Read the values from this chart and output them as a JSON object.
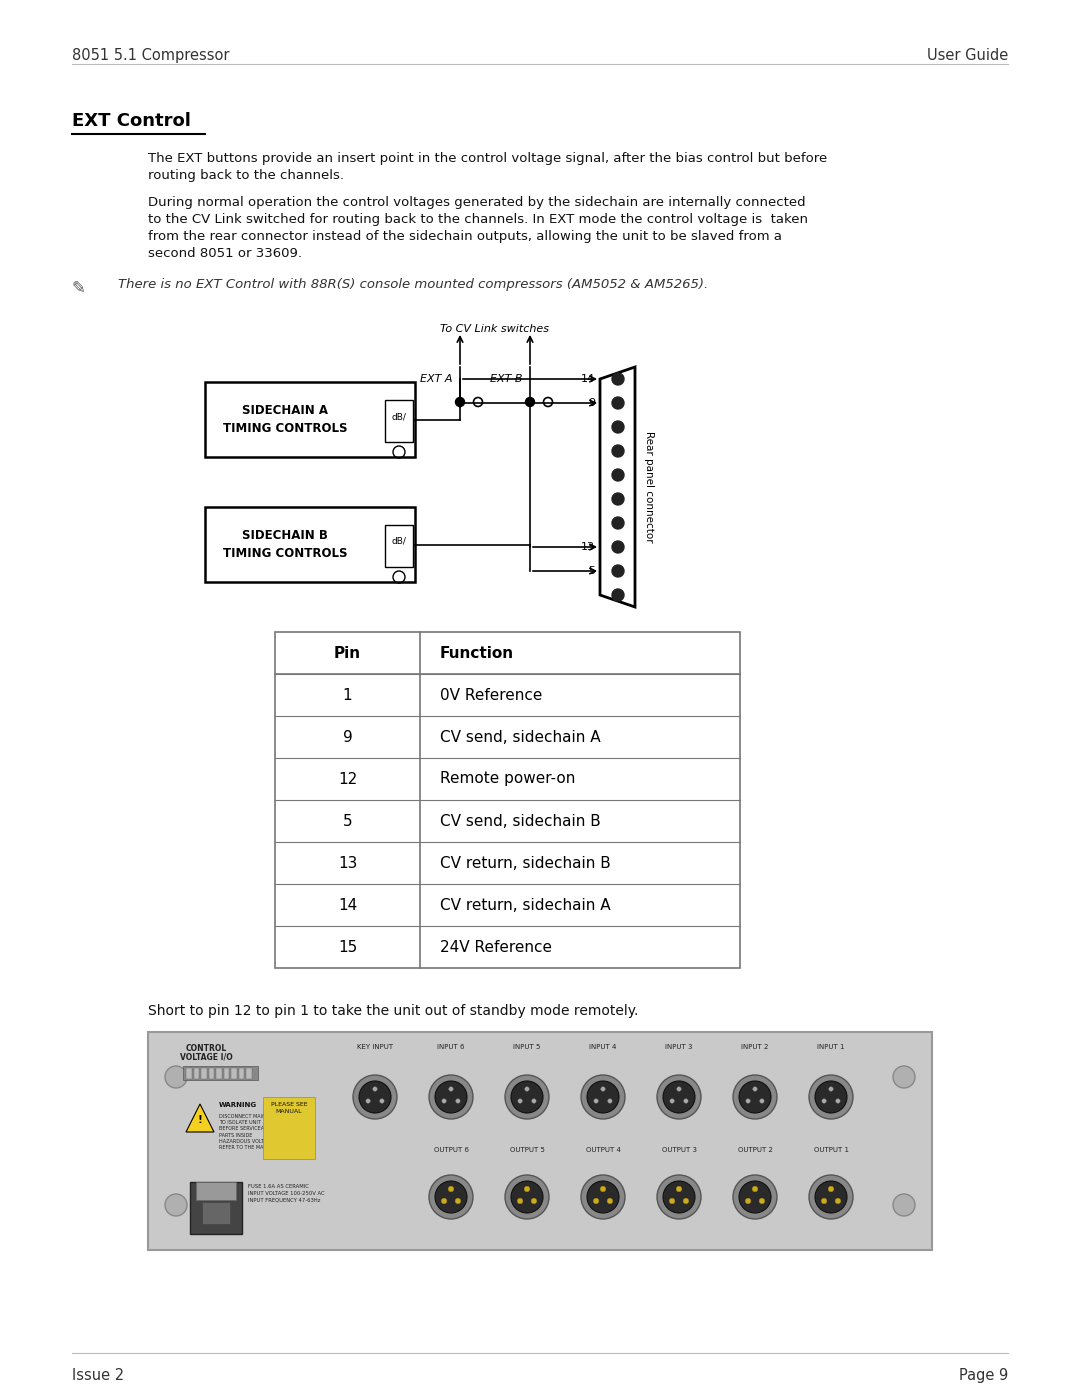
{
  "header_left": "8051 5.1 Compressor",
  "header_right": "User Guide",
  "footer_left": "Issue 2",
  "footer_right": "Page 9",
  "section_title": "EXT Control",
  "para1_lines": [
    "The EXT buttons provide an insert point in the control voltage signal, after the bias control but before",
    "routing back to the channels."
  ],
  "para2_lines": [
    "During normal operation the control voltages generated by the sidechain are internally connected",
    "to the CV Link switched for routing back to the channels. In EXT mode the control voltage is  taken",
    "from the rear connector instead of the sidechain outputs, allowing the unit to be slaved from a",
    "second 8051 or 33609."
  ],
  "note": "There is no EXT Control with 88R(S) console mounted compressors (AM5052 & AM5265).",
  "table_headers": [
    "Pin",
    "Function"
  ],
  "table_rows": [
    [
      "1",
      "0V Reference"
    ],
    [
      "9",
      "CV send, sidechain A"
    ],
    [
      "12",
      "Remote power-on"
    ],
    [
      "5",
      "CV send, sidechain B"
    ],
    [
      "13",
      "CV return, sidechain B"
    ],
    [
      "14",
      "CV return, sidechain A"
    ],
    [
      "15",
      "24V Reference"
    ]
  ],
  "short_note": "Short to pin 12 to pin 1 to take the unit out of standby mode remotely.",
  "bg_color": "#ffffff",
  "text_color": "#000000"
}
